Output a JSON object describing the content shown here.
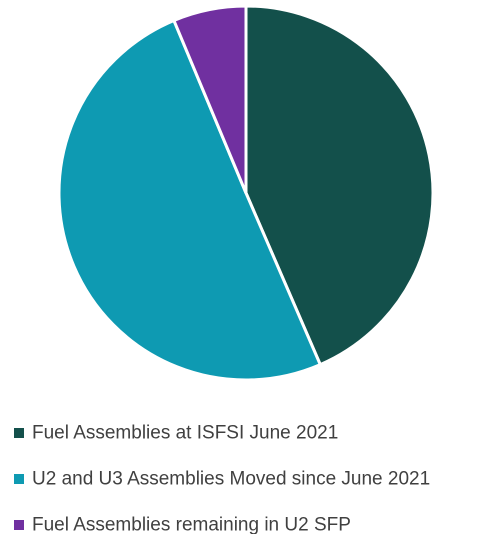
{
  "chart_data": {
    "type": "pie",
    "title": "",
    "slices": [
      {
        "label": "Fuel Assemblies at ISFSI June 2021",
        "value": 43.5,
        "color": "#13504B"
      },
      {
        "label": "U2 and U3 Assemblies Moved since June 2021",
        "value": 50.2,
        "color": "#0E9AB2"
      },
      {
        "label": "Fuel Assemblies remaining in U2 SFP",
        "value": 6.3,
        "color": "#7030A0"
      }
    ],
    "start_angle_deg": 0,
    "direction": "clockwise",
    "legend_position": "bottom"
  }
}
